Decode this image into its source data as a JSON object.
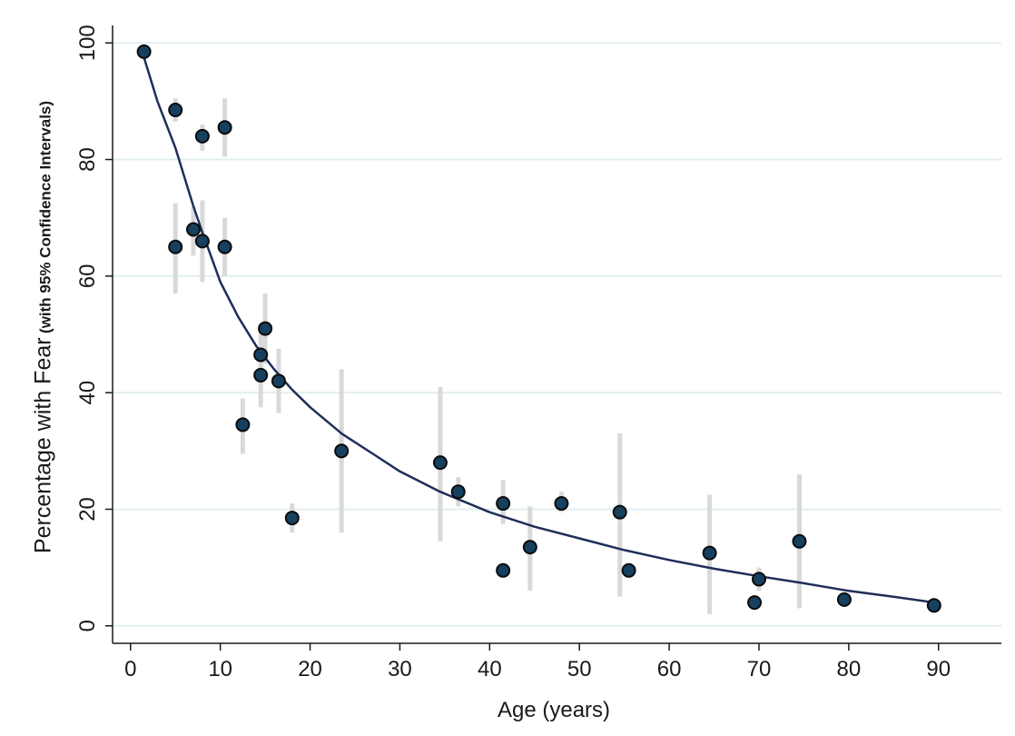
{
  "chart_data": {
    "type": "scatter",
    "title": "",
    "xlabel": "Age (years)",
    "ylabel": "Percentage with Fear",
    "ylabel_suffix": "(with 95% Confidence Intervals)",
    "xlim": [
      -2,
      97
    ],
    "ylim": [
      -3,
      103
    ],
    "xticks": [
      0,
      10,
      20,
      30,
      40,
      50,
      60,
      70,
      80,
      90
    ],
    "yticks": [
      0,
      20,
      40,
      60,
      80,
      100
    ],
    "grid": "horizontal",
    "legend": "none",
    "colors": {
      "point": "#16405f",
      "point_edge": "#0b0b0b",
      "ci": "#d9d9d9",
      "fit": "#1f2e5a",
      "grid": "#e2eef0"
    },
    "series": [
      {
        "kind": "points_with_ci",
        "points": [
          {
            "x": 1.5,
            "y": 98.5,
            "lo": 98,
            "hi": 99
          },
          {
            "x": 5,
            "y": 88.5,
            "lo": 86.5,
            "hi": 90.5
          },
          {
            "x": 5,
            "y": 65,
            "lo": 57,
            "hi": 72.5
          },
          {
            "x": 7,
            "y": 68,
            "lo": 63.5,
            "hi": 72
          },
          {
            "x": 8,
            "y": 84,
            "lo": 81.5,
            "hi": 86
          },
          {
            "x": 8,
            "y": 66,
            "lo": 59,
            "hi": 73
          },
          {
            "x": 10.5,
            "y": 85.5,
            "lo": 80.5,
            "hi": 90.5
          },
          {
            "x": 10.5,
            "y": 65,
            "lo": 60,
            "hi": 70
          },
          {
            "x": 12.5,
            "y": 34.5,
            "lo": 29.5,
            "hi": 39
          },
          {
            "x": 14.5,
            "y": 46.5,
            "lo": 42,
            "hi": 51
          },
          {
            "x": 14.5,
            "y": 43,
            "lo": 37.5,
            "hi": 48
          },
          {
            "x": 15,
            "y": 51,
            "lo": 45,
            "hi": 57
          },
          {
            "x": 16.5,
            "y": 42,
            "lo": 36.5,
            "hi": 47.5
          },
          {
            "x": 18,
            "y": 18.5,
            "lo": 16,
            "hi": 21
          },
          {
            "x": 23.5,
            "y": 30,
            "lo": 16,
            "hi": 44
          },
          {
            "x": 34.5,
            "y": 28,
            "lo": 14.5,
            "hi": 41
          },
          {
            "x": 36.5,
            "y": 23,
            "lo": 20.5,
            "hi": 25.5
          },
          {
            "x": 41.5,
            "y": 21,
            "lo": 17.5,
            "hi": 25
          },
          {
            "x": 41.5,
            "y": 9.5,
            "lo": 8.5,
            "hi": 10.5
          },
          {
            "x": 44.5,
            "y": 13.5,
            "lo": 6,
            "hi": 20.5
          },
          {
            "x": 48,
            "y": 21,
            "lo": 19.5,
            "hi": 23
          },
          {
            "x": 54.5,
            "y": 19.5,
            "lo": 5,
            "hi": 33
          },
          {
            "x": 55.5,
            "y": 9.5,
            "lo": 8.5,
            "hi": 10.5
          },
          {
            "x": 64.5,
            "y": 12.5,
            "lo": 2,
            "hi": 22.5
          },
          {
            "x": 69.5,
            "y": 4,
            "lo": 3.5,
            "hi": 5
          },
          {
            "x": 70,
            "y": 8,
            "lo": 6,
            "hi": 10
          },
          {
            "x": 74.5,
            "y": 14.5,
            "lo": 3,
            "hi": 26
          },
          {
            "x": 79.5,
            "y": 4.5,
            "lo": 4,
            "hi": 5.5
          },
          {
            "x": 89.5,
            "y": 3.5,
            "lo": 3,
            "hi": 4
          }
        ]
      },
      {
        "kind": "fitted_line",
        "x": [
          1.5,
          3,
          5,
          7,
          8,
          10,
          12,
          14,
          16,
          18,
          20,
          23.5,
          27,
          30,
          34.5,
          40,
          45,
          50,
          55,
          60,
          65,
          70,
          75,
          80,
          85,
          89.5
        ],
        "y": [
          97.5,
          90,
          82,
          72,
          67.5,
          59,
          53,
          48,
          44,
          40.5,
          37.5,
          33,
          29.5,
          26.5,
          23,
          19.5,
          17,
          15,
          13,
          11.3,
          9.8,
          8.5,
          7.3,
          6,
          5,
          4
        ]
      }
    ]
  }
}
